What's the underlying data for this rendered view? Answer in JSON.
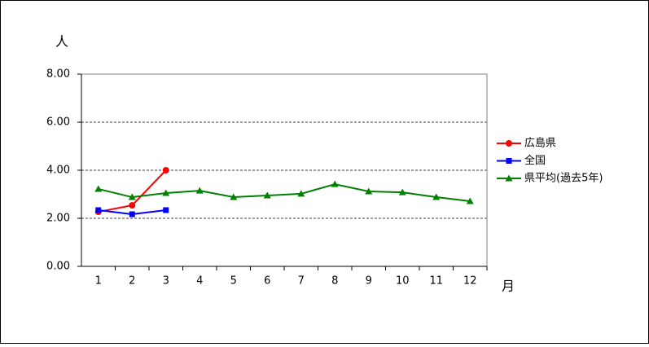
{
  "chart_data": {
    "type": "line",
    "y_label": "人",
    "x_label": "月",
    "categories": [
      "1",
      "2",
      "3",
      "4",
      "5",
      "6",
      "7",
      "8",
      "9",
      "10",
      "11",
      "12"
    ],
    "series": [
      {
        "name": "広島県",
        "color": "#ff0000",
        "marker": "circle",
        "values": [
          2.27,
          2.54,
          4.0,
          null,
          null,
          null,
          null,
          null,
          null,
          null,
          null,
          null
        ]
      },
      {
        "name": "全国",
        "color": "#0000ff",
        "marker": "square",
        "values": [
          2.34,
          2.17,
          2.34,
          null,
          null,
          null,
          null,
          null,
          null,
          null,
          null,
          null
        ]
      },
      {
        "name": "県平均(過去5年)",
        "color": "#008000",
        "marker": "triangle",
        "values": [
          3.22,
          2.88,
          3.05,
          3.15,
          2.88,
          2.95,
          3.02,
          3.42,
          3.12,
          3.08,
          2.88,
          2.71
        ]
      }
    ],
    "ylim": [
      0,
      8
    ],
    "yticks": [
      {
        "value": 0,
        "label": "0.00"
      },
      {
        "value": 2,
        "label": "2.00"
      },
      {
        "value": 4,
        "label": "4.00"
      },
      {
        "value": 6,
        "label": "6.00"
      },
      {
        "value": 8,
        "label": "8.00"
      }
    ],
    "grid": true,
    "legend": "right"
  }
}
